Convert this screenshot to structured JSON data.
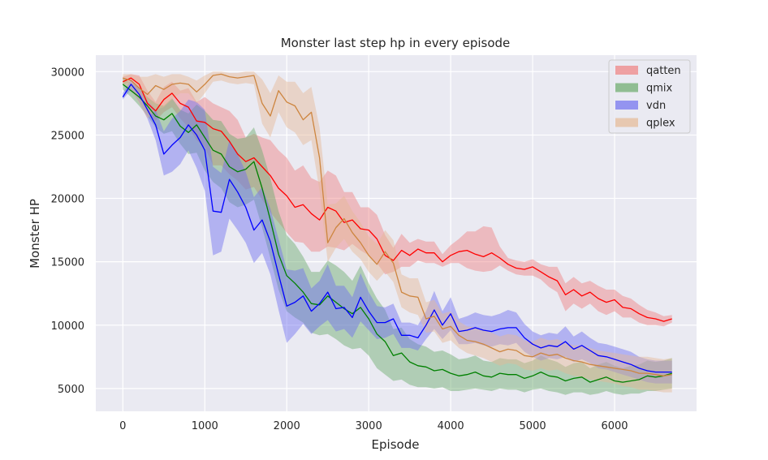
{
  "chart_data": {
    "type": "line",
    "title": "Monster last step hp in every episode",
    "xlabel": "Episode",
    "ylabel": "Monster HP",
    "xlim": [
      -330,
      7000
    ],
    "ylim": [
      3200,
      31300
    ],
    "xticks": [
      0,
      1000,
      2000,
      3000,
      4000,
      5000,
      6000
    ],
    "yticks": [
      5000,
      10000,
      15000,
      20000,
      25000,
      30000
    ],
    "grid": true,
    "legend_position": "top-right",
    "background": "#eaeaf2",
    "series": [
      {
        "name": "qatten",
        "color": "#ff0000",
        "band_color": "#f08080",
        "x": [
          0,
          100,
          200,
          300,
          400,
          500,
          600,
          700,
          800,
          900,
          1000,
          1100,
          1200,
          1300,
          1400,
          1500,
          1600,
          1700,
          1800,
          1900,
          2000,
          2100,
          2200,
          2300,
          2400,
          2500,
          2600,
          2700,
          2800,
          2900,
          3000,
          3100,
          3200,
          3300,
          3400,
          3500,
          3600,
          3700,
          3800,
          3900,
          4000,
          4100,
          4200,
          4300,
          4400,
          4500,
          4600,
          4700,
          4800,
          4900,
          5000,
          5100,
          5200,
          5300,
          5400,
          5500,
          5600,
          5700,
          5800,
          5900,
          6000,
          6100,
          6200,
          6300,
          6400,
          6500,
          6600,
          6700
        ],
        "values": [
          29200,
          29500,
          29000,
          27500,
          26900,
          27800,
          28300,
          27500,
          27200,
          26100,
          26000,
          25500,
          25300,
          24500,
          23500,
          22900,
          23200,
          22500,
          21800,
          20800,
          20200,
          19300,
          19500,
          18800,
          18300,
          19300,
          19000,
          18100,
          18300,
          17600,
          17500,
          16800,
          15500,
          15100,
          15900,
          15500,
          16000,
          15700,
          15700,
          15000,
          15500,
          15800,
          15900,
          15600,
          15400,
          15700,
          15300,
          14800,
          14500,
          14400,
          14600,
          14200,
          13800,
          13500,
          12400,
          12800,
          12300,
          12600,
          12100,
          11800,
          12000,
          11400,
          11300,
          10900,
          10600,
          10500,
          10300,
          10500
        ],
        "lower": [
          29000,
          29200,
          28200,
          26800,
          26100,
          26800,
          27200,
          26300,
          25600,
          24600,
          24000,
          22600,
          22600,
          21900,
          21400,
          20700,
          20900,
          19900,
          18900,
          18100,
          17300,
          16600,
          16500,
          15800,
          15800,
          16200,
          16100,
          15900,
          16400,
          15900,
          15500,
          14900,
          14000,
          14200,
          14600,
          14600,
          15100,
          14900,
          14900,
          14600,
          14900,
          14900,
          14500,
          14300,
          14200,
          14300,
          14700,
          14300,
          14000,
          13900,
          13900,
          13600,
          13000,
          12600,
          11100,
          11700,
          11300,
          11700,
          11100,
          10800,
          11100,
          10600,
          10600,
          10200,
          10000,
          10000,
          9900,
          10200
        ],
        "upper": [
          29600,
          29800,
          29700,
          28500,
          27600,
          28800,
          29200,
          28500,
          28700,
          27600,
          28000,
          27500,
          27200,
          26900,
          26200,
          24800,
          25100,
          24800,
          24600,
          23800,
          23200,
          22200,
          22600,
          21600,
          21300,
          22200,
          21800,
          20500,
          20500,
          19300,
          19300,
          18700,
          17100,
          16100,
          17200,
          16500,
          16800,
          16600,
          16600,
          15600,
          16300,
          16800,
          17400,
          17400,
          17800,
          17700,
          16200,
          15300,
          15100,
          15000,
          15200,
          14800,
          14600,
          14600,
          13300,
          13800,
          13300,
          13500,
          13100,
          12800,
          12800,
          12300,
          12100,
          11600,
          11200,
          11000,
          10700,
          10800
        ]
      },
      {
        "name": "qmix",
        "color": "#008000",
        "band_color": "#6aaa6a",
        "x": [
          0,
          100,
          200,
          300,
          400,
          500,
          600,
          700,
          800,
          900,
          1000,
          1100,
          1200,
          1300,
          1400,
          1500,
          1600,
          1700,
          1800,
          1900,
          2000,
          2100,
          2200,
          2300,
          2400,
          2500,
          2600,
          2700,
          2800,
          2900,
          3000,
          3100,
          3200,
          3300,
          3400,
          3500,
          3600,
          3700,
          3800,
          3900,
          4000,
          4100,
          4200,
          4300,
          4400,
          4500,
          4600,
          4700,
          4800,
          4900,
          5000,
          5100,
          5200,
          5300,
          5400,
          5500,
          5600,
          5700,
          5800,
          5900,
          6000,
          6100,
          6200,
          6300,
          6400,
          6500,
          6600,
          6700
        ],
        "values": [
          29000,
          28500,
          28000,
          27300,
          26500,
          26200,
          26700,
          25700,
          25200,
          25800,
          24800,
          23800,
          23500,
          22500,
          22100,
          22300,
          22900,
          20800,
          18300,
          15600,
          13900,
          13300,
          12600,
          11700,
          11600,
          12300,
          11800,
          11300,
          10900,
          11400,
          10500,
          9300,
          8700,
          7600,
          7800,
          7100,
          6800,
          6700,
          6400,
          6500,
          6200,
          6000,
          6100,
          6300,
          6000,
          5900,
          6200,
          6100,
          6100,
          5800,
          6000,
          6300,
          6000,
          5900,
          5600,
          5800,
          5900,
          5500,
          5700,
          5900,
          5600,
          5500,
          5600,
          5700,
          6000,
          5900,
          6000,
          6200
        ],
        "lower": [
          28600,
          28000,
          27300,
          26500,
          25600,
          25100,
          25300,
          24300,
          23500,
          23600,
          22200,
          21300,
          20800,
          19700,
          19300,
          19500,
          19900,
          17700,
          15300,
          12800,
          11100,
          10600,
          10200,
          9400,
          9200,
          9300,
          8900,
          8400,
          8100,
          8200,
          7600,
          6600,
          6100,
          5600,
          5700,
          5300,
          5100,
          5100,
          5000,
          5100,
          4800,
          4800,
          4900,
          5000,
          4900,
          4800,
          5000,
          4900,
          4900,
          4700,
          4900,
          5000,
          4800,
          4700,
          4500,
          4700,
          4700,
          4500,
          4600,
          4800,
          4600,
          4500,
          4600,
          4600,
          4800,
          4800,
          4900,
          5000
        ],
        "upper": [
          29500,
          29100,
          28700,
          28000,
          27500,
          27300,
          27900,
          27000,
          26700,
          27400,
          26900,
          26200,
          26100,
          25100,
          24700,
          24800,
          25600,
          23800,
          21600,
          19000,
          17100,
          16400,
          15400,
          14200,
          14200,
          15100,
          14700,
          14200,
          13500,
          14700,
          13300,
          12100,
          11200,
          9700,
          9800,
          8900,
          8500,
          8300,
          7900,
          8000,
          7700,
          7300,
          7400,
          7600,
          7200,
          7100,
          7400,
          7300,
          7300,
          7000,
          7200,
          7600,
          7300,
          7100,
          6700,
          7000,
          7100,
          6600,
          6900,
          7100,
          6800,
          6600,
          6800,
          6900,
          7200,
          7100,
          7200,
          7400
        ]
      },
      {
        "name": "vdn",
        "color": "#0000ff",
        "band_color": "#6f6ff0",
        "x": [
          0,
          100,
          200,
          300,
          400,
          500,
          600,
          700,
          800,
          900,
          1000,
          1100,
          1200,
          1300,
          1400,
          1500,
          1600,
          1700,
          1800,
          1900,
          2000,
          2100,
          2200,
          2300,
          2400,
          2500,
          2600,
          2700,
          2800,
          2900,
          3000,
          3100,
          3200,
          3300,
          3400,
          3500,
          3600,
          3700,
          3800,
          3900,
          4000,
          4100,
          4200,
          4300,
          4400,
          4500,
          4600,
          4700,
          4800,
          4900,
          5000,
          5100,
          5200,
          5300,
          5400,
          5500,
          5600,
          5700,
          5800,
          5900,
          6000,
          6100,
          6200,
          6300,
          6400,
          6500,
          6600,
          6700
        ],
        "values": [
          28000,
          29000,
          28200,
          27000,
          25800,
          23500,
          24200,
          24800,
          25800,
          25000,
          23800,
          19000,
          18900,
          21500,
          20500,
          19300,
          17500,
          18300,
          16600,
          14000,
          11500,
          11800,
          12300,
          11100,
          11700,
          12600,
          11300,
          11400,
          10600,
          12200,
          11100,
          10200,
          10200,
          10500,
          9200,
          9200,
          9000,
          10000,
          11200,
          10000,
          10900,
          9500,
          9600,
          9800,
          9600,
          9500,
          9700,
          9800,
          9800,
          9000,
          8500,
          8200,
          8400,
          8300,
          8700,
          8100,
          8400,
          8000,
          7600,
          7500,
          7300,
          7100,
          6900,
          6600,
          6400,
          6300,
          6300,
          6300
        ],
        "lower": [
          27800,
          28600,
          27600,
          26300,
          24600,
          21800,
          22100,
          22700,
          23800,
          22400,
          20600,
          15500,
          15800,
          18400,
          17500,
          16500,
          14900,
          15700,
          14000,
          11200,
          8600,
          9300,
          10100,
          9300,
          9900,
          10400,
          9500,
          9700,
          9000,
          10300,
          9600,
          8900,
          9000,
          9300,
          8200,
          8200,
          8000,
          8900,
          9700,
          8900,
          9600,
          8500,
          8500,
          8600,
          8400,
          8300,
          8500,
          8400,
          8600,
          7900,
          7500,
          7200,
          7400,
          7300,
          7500,
          7100,
          7300,
          7000,
          6600,
          6500,
          6300,
          6100,
          5900,
          5700,
          5500,
          5400,
          5400,
          5400
        ],
        "upper": [
          28300,
          29400,
          28700,
          27700,
          27000,
          25300,
          26300,
          26900,
          27800,
          27600,
          27000,
          22500,
          22000,
          24600,
          23500,
          22100,
          20100,
          20900,
          19200,
          16800,
          14400,
          14300,
          14500,
          12900,
          13500,
          14800,
          13100,
          13100,
          12200,
          14100,
          12600,
          11500,
          11400,
          11700,
          10200,
          10200,
          10000,
          11100,
          12700,
          11100,
          12200,
          10500,
          10700,
          11000,
          10800,
          10700,
          10900,
          11200,
          11000,
          10100,
          9500,
          9200,
          9400,
          9300,
          9900,
          9100,
          9500,
          9000,
          8600,
          8500,
          8300,
          8100,
          7900,
          7500,
          7300,
          7200,
          7200,
          7200
        ]
      },
      {
        "name": "qplex",
        "color": "#cd853f",
        "band_color": "#e6b995",
        "x": [
          0,
          100,
          200,
          300,
          400,
          500,
          600,
          700,
          800,
          900,
          1000,
          1100,
          1200,
          1300,
          1400,
          1500,
          1600,
          1700,
          1800,
          1900,
          2000,
          2100,
          2200,
          2300,
          2400,
          2500,
          2600,
          2700,
          2800,
          2900,
          3000,
          3100,
          3200,
          3300,
          3400,
          3500,
          3600,
          3700,
          3800,
          3900,
          4000,
          4100,
          4200,
          4300,
          4400,
          4500,
          4600,
          4700,
          4800,
          4900,
          5000,
          5100,
          5200,
          5300,
          5400,
          5500,
          5600,
          5700,
          5800,
          5900,
          6000,
          6100,
          6200,
          6300,
          6400,
          6500,
          6600,
          6700
        ],
        "values": [
          29500,
          29300,
          28700,
          28200,
          28900,
          28600,
          29000,
          29100,
          29000,
          28400,
          29000,
          29700,
          29800,
          29600,
          29500,
          29600,
          29700,
          27500,
          26500,
          28500,
          27600,
          27300,
          26200,
          26800,
          23200,
          16500,
          17700,
          18400,
          17300,
          16500,
          15500,
          14800,
          15800,
          14900,
          12600,
          12300,
          12200,
          10500,
          10700,
          9700,
          9900,
          9200,
          8800,
          8700,
          8500,
          8200,
          7900,
          8100,
          8000,
          7600,
          7500,
          7800,
          7600,
          7700,
          7400,
          7200,
          7100,
          6900,
          6800,
          6700,
          6600,
          6500,
          6400,
          6200,
          6200,
          6100,
          6000,
          6100
        ],
        "lower": [
          29100,
          28600,
          27500,
          26300,
          27000,
          27200,
          27800,
          28300,
          28300,
          27500,
          28300,
          29200,
          29300,
          29100,
          29000,
          29100,
          29000,
          25900,
          24800,
          26800,
          25600,
          25200,
          24200,
          24600,
          20600,
          15000,
          16100,
          16800,
          15800,
          15200,
          14200,
          13500,
          14200,
          13400,
          11400,
          11000,
          10800,
          9400,
          9500,
          8600,
          8800,
          8200,
          7800,
          7600,
          7400,
          7100,
          6800,
          7000,
          6900,
          6500,
          6400,
          6600,
          6400,
          6500,
          6200,
          6000,
          5900,
          5700,
          5600,
          5500,
          5400,
          5200,
          5100,
          4900,
          4900,
          4800,
          4700,
          4700
        ],
        "upper": [
          29800,
          29800,
          29600,
          29600,
          29800,
          29600,
          29800,
          29800,
          29600,
          29300,
          29700,
          30000,
          30000,
          29900,
          29900,
          30000,
          30000,
          29400,
          28300,
          29700,
          29200,
          29200,
          28300,
          28800,
          25600,
          19500,
          19600,
          20200,
          19000,
          18100,
          17000,
          16400,
          17500,
          16700,
          14000,
          13700,
          13700,
          11800,
          12000,
          10900,
          11100,
          10300,
          9900,
          9800,
          9700,
          9400,
          9100,
          9300,
          9200,
          8800,
          8700,
          9000,
          8800,
          8900,
          8600,
          8400,
          8400,
          8200,
          8000,
          7900,
          7800,
          7700,
          7600,
          7500,
          7500,
          7400,
          7300,
          7400
        ]
      }
    ]
  }
}
